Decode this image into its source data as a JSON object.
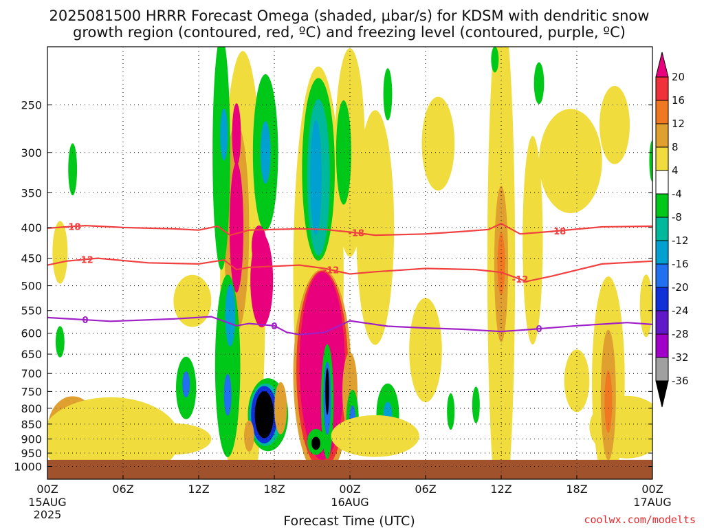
{
  "title_line1": "2025081500 HRRR Forecast Omega (shaded, μbar/s) for KDSM with dendritic snow",
  "title_line2": "growth region (contoured, red, ºC) and freezing level (contoured, purple, ºC)",
  "credit": "coolwx.com/modelts",
  "chart_data": {
    "type": "heatmap",
    "xlabel": "Forecast Time (UTC)",
    "ylabel": "",
    "x_range_hours": [
      0,
      48
    ],
    "y_axis": "pressure (mb), log scale, inverted",
    "y_range": [
      1050,
      200
    ],
    "x_ticks": [
      {
        "hour": 0,
        "label": "00Z",
        "sub1": "15AUG",
        "sub2": "2025"
      },
      {
        "hour": 6,
        "label": "06Z",
        "sub1": "",
        "sub2": ""
      },
      {
        "hour": 12,
        "label": "12Z",
        "sub1": "",
        "sub2": ""
      },
      {
        "hour": 18,
        "label": "18Z",
        "sub1": "",
        "sub2": ""
      },
      {
        "hour": 24,
        "label": "00Z",
        "sub1": "16AUG",
        "sub2": ""
      },
      {
        "hour": 30,
        "label": "06Z",
        "sub1": "",
        "sub2": ""
      },
      {
        "hour": 36,
        "label": "12Z",
        "sub1": "",
        "sub2": ""
      },
      {
        "hour": 42,
        "label": "18Z",
        "sub1": "",
        "sub2": ""
      },
      {
        "hour": 48,
        "label": "00Z",
        "sub1": "17AUG",
        "sub2": ""
      }
    ],
    "y_ticks": [
      250,
      300,
      350,
      400,
      450,
      500,
      550,
      600,
      650,
      700,
      750,
      800,
      850,
      900,
      950,
      1000
    ],
    "grid": true,
    "colorbar": {
      "levels": [
        20,
        16,
        12,
        8,
        4,
        -4,
        -8,
        -12,
        -16,
        -20,
        -24,
        -28,
        -32,
        -36
      ],
      "colors": [
        "#e8007c",
        "#f0303a",
        "#f07820",
        "#e0a030",
        "#f0dc3c",
        "#ffffff",
        "#00c818",
        "#00b89c",
        "#00a0d0",
        "#2070f0",
        "#1030d8",
        "#6018c8",
        "#a000c8",
        "#a0a0a0",
        "#000000"
      ]
    },
    "ground": {
      "pressure_from": 975,
      "color": "#a0522d"
    },
    "contours": [
      {
        "name": "-18",
        "color": "#f04040",
        "label_hours": [
          2,
          24.5,
          40.5
        ],
        "points": [
          [
            0,
            401
          ],
          [
            3,
            397
          ],
          [
            6,
            400
          ],
          [
            10,
            402
          ],
          [
            12,
            404
          ],
          [
            13.5,
            398
          ],
          [
            14.5,
            412
          ],
          [
            16,
            404
          ],
          [
            20,
            402
          ],
          [
            22,
            403
          ],
          [
            24,
            407
          ],
          [
            26,
            412
          ],
          [
            30,
            410
          ],
          [
            33,
            406
          ],
          [
            35,
            403
          ],
          [
            36,
            394
          ],
          [
            37.5,
            410
          ],
          [
            40,
            406
          ],
          [
            44,
            399
          ],
          [
            48,
            398
          ]
        ]
      },
      {
        "name": "-12",
        "color": "#f04040",
        "label_hours": [
          3,
          22.5,
          37.5
        ],
        "points": [
          [
            0,
            462
          ],
          [
            1.5,
            455
          ],
          [
            4,
            450
          ],
          [
            8,
            458
          ],
          [
            12,
            460
          ],
          [
            14,
            453
          ],
          [
            15,
            470
          ],
          [
            16,
            466
          ],
          [
            20,
            462
          ],
          [
            22,
            468
          ],
          [
            24,
            478
          ],
          [
            26,
            474
          ],
          [
            30,
            468
          ],
          [
            34,
            470
          ],
          [
            36,
            475
          ],
          [
            38,
            492
          ],
          [
            40,
            482
          ],
          [
            44,
            460
          ],
          [
            48,
            455
          ]
        ]
      },
      {
        "name": "0",
        "color": "#a020c8",
        "label_hours": [
          3,
          18,
          39
        ],
        "points": [
          [
            0,
            565
          ],
          [
            5,
            573
          ],
          [
            10,
            568
          ],
          [
            13,
            563
          ],
          [
            15,
            583
          ],
          [
            16,
            578
          ],
          [
            18,
            583
          ],
          [
            19,
            598
          ],
          [
            20,
            603
          ],
          [
            22,
            598
          ],
          [
            24,
            572
          ],
          [
            27,
            584
          ],
          [
            30,
            588
          ],
          [
            33,
            591
          ],
          [
            36,
            596
          ],
          [
            38,
            592
          ],
          [
            42,
            583
          ],
          [
            46,
            576
          ],
          [
            48,
            580
          ]
        ]
      }
    ],
    "shaded_regions": [
      {
        "level": 8,
        "cx": 2,
        "cy": 870,
        "rx": 2.0,
        "ry": 0.13
      },
      {
        "level": 4,
        "cx": 5,
        "cy": 900,
        "rx": 5.5,
        "ry": 0.16
      },
      {
        "level": 4,
        "cx": 1,
        "cy": 440,
        "rx": 0.6,
        "ry": 0.12
      },
      {
        "level": 4,
        "cx": 11.5,
        "cy": 530,
        "rx": 1.5,
        "ry": 0.1
      },
      {
        "level": 4,
        "cx": 10,
        "cy": 900,
        "rx": 3.0,
        "ry": 0.06
      },
      {
        "level": -8,
        "cx": 2,
        "cy": 320,
        "rx": 0.35,
        "ry": 0.1
      },
      {
        "level": -8,
        "cx": 1,
        "cy": 620,
        "rx": 0.35,
        "ry": 0.06
      },
      {
        "level": 4,
        "cx": 15.5,
        "cy": 500,
        "rx": 1.8,
        "ry": 0.9
      },
      {
        "level": 8,
        "cx": 15,
        "cy": 400,
        "rx": 1.0,
        "ry": 0.4
      },
      {
        "level": 20,
        "cx": 15,
        "cy": 400,
        "rx": 0.55,
        "ry": 0.25
      },
      {
        "level": 20,
        "cx": 15,
        "cy": 280,
        "rx": 0.35,
        "ry": 0.12
      },
      {
        "level": 20,
        "cx": 17,
        "cy": 490,
        "rx": 0.9,
        "ry": 0.18
      },
      {
        "level": 20,
        "cx": 16.8,
        "cy": 430,
        "rx": 0.6,
        "ry": 0.08
      },
      {
        "level": -8,
        "cx": 13.8,
        "cy": 300,
        "rx": 0.7,
        "ry": 0.45
      },
      {
        "level": -16,
        "cx": 14,
        "cy": 280,
        "rx": 0.3,
        "ry": 0.1
      },
      {
        "level": -8,
        "cx": 17.3,
        "cy": 300,
        "rx": 1.0,
        "ry": 0.3
      },
      {
        "level": -16,
        "cx": 17.3,
        "cy": 300,
        "rx": 0.4,
        "ry": 0.12
      },
      {
        "level": -8,
        "cx": 14.3,
        "cy": 680,
        "rx": 1.0,
        "ry": 0.35
      },
      {
        "level": -16,
        "cx": 14.5,
        "cy": 560,
        "rx": 0.4,
        "ry": 0.12
      },
      {
        "level": -20,
        "cx": 14.3,
        "cy": 760,
        "rx": 0.3,
        "ry": 0.08
      },
      {
        "level": -8,
        "cx": 11,
        "cy": 740,
        "rx": 0.8,
        "ry": 0.12
      },
      {
        "level": -20,
        "cx": 11,
        "cy": 730,
        "rx": 0.3,
        "ry": 0.05
      },
      {
        "level": -8,
        "cx": 17.5,
        "cy": 820,
        "rx": 1.6,
        "ry": 0.14
      },
      {
        "level": -12,
        "cx": 17.3,
        "cy": 820,
        "rx": 1.3,
        "ry": 0.12
      },
      {
        "level": -24,
        "cx": 17.2,
        "cy": 820,
        "rx": 1.05,
        "ry": 0.11
      },
      {
        "level": -36,
        "cx": 17.2,
        "cy": 820,
        "rx": 0.75,
        "ry": 0.09
      },
      {
        "level": 8,
        "cx": 16.0,
        "cy": 890,
        "rx": 0.4,
        "ry": 0.06
      },
      {
        "level": 8,
        "cx": 18.5,
        "cy": 800,
        "rx": 0.5,
        "ry": 0.1
      },
      {
        "level": 4,
        "cx": 21.5,
        "cy": 480,
        "rx": 2.0,
        "ry": 0.8
      },
      {
        "level": 4,
        "cx": 24,
        "cy": 300,
        "rx": 1.2,
        "ry": 0.4
      },
      {
        "level": -8,
        "cx": 21.5,
        "cy": 320,
        "rx": 1.3,
        "ry": 0.35
      },
      {
        "level": -12,
        "cx": 21.5,
        "cy": 330,
        "rx": 0.9,
        "ry": 0.3
      },
      {
        "level": -16,
        "cx": 21.3,
        "cy": 330,
        "rx": 0.45,
        "ry": 0.22
      },
      {
        "level": -8,
        "cx": 23.5,
        "cy": 300,
        "rx": 0.6,
        "ry": 0.2
      },
      {
        "level": 8,
        "cx": 21.8,
        "cy": 700,
        "rx": 2.3,
        "ry": 0.4
      },
      {
        "level": 16,
        "cx": 21.8,
        "cy": 690,
        "rx": 2.05,
        "ry": 0.38
      },
      {
        "level": 20,
        "cx": 21.8,
        "cy": 680,
        "rx": 1.8,
        "ry": 0.36
      },
      {
        "level": 8,
        "cx": 24,
        "cy": 750,
        "rx": 0.6,
        "ry": 0.15
      },
      {
        "level": -8,
        "cx": 22.2,
        "cy": 780,
        "rx": 0.5,
        "ry": 0.22
      },
      {
        "level": -20,
        "cx": 22.2,
        "cy": 770,
        "rx": 0.3,
        "ry": 0.14
      },
      {
        "level": -36,
        "cx": 22.2,
        "cy": 750,
        "rx": 0.15,
        "ry": 0.09
      },
      {
        "level": -8,
        "cx": 21.3,
        "cy": 910,
        "rx": 0.7,
        "ry": 0.05
      },
      {
        "level": -36,
        "cx": 21.3,
        "cy": 915,
        "rx": 0.35,
        "ry": 0.025
      },
      {
        "level": -8,
        "cx": 24.2,
        "cy": 840,
        "rx": 0.5,
        "ry": 0.12
      },
      {
        "level": -20,
        "cx": 24.2,
        "cy": 840,
        "rx": 0.25,
        "ry": 0.06
      },
      {
        "level": -8,
        "cx": 27,
        "cy": 820,
        "rx": 0.9,
        "ry": 0.12
      },
      {
        "level": -16,
        "cx": 27,
        "cy": 820,
        "rx": 0.35,
        "ry": 0.05
      },
      {
        "level": 4,
        "cx": 26,
        "cy": 890,
        "rx": 3.5,
        "ry": 0.08
      },
      {
        "level": 4,
        "cx": 26,
        "cy": 400,
        "rx": 1.5,
        "ry": 0.45
      },
      {
        "level": -8,
        "cx": 27,
        "cy": 240,
        "rx": 0.35,
        "ry": 0.1
      },
      {
        "level": -8,
        "cx": 30,
        "cy": 640,
        "rx": 0.7,
        "ry": 0.1
      },
      {
        "level": 4,
        "cx": 30,
        "cy": 640,
        "rx": 1.3,
        "ry": 0.2
      },
      {
        "level": 4,
        "cx": 31,
        "cy": 290,
        "rx": 1.3,
        "ry": 0.18
      },
      {
        "level": -8,
        "cx": 32,
        "cy": 810,
        "rx": 0.3,
        "ry": 0.07
      },
      {
        "level": 4,
        "cx": 36,
        "cy": 460,
        "rx": 1.1,
        "ry": 1.0
      },
      {
        "level": 8,
        "cx": 36,
        "cy": 460,
        "rx": 0.55,
        "ry": 0.3
      },
      {
        "level": 12,
        "cx": 36,
        "cy": 460,
        "rx": 0.3,
        "ry": 0.12
      },
      {
        "level": -8,
        "cx": 35.5,
        "cy": 210,
        "rx": 0.3,
        "ry": 0.05
      },
      {
        "level": -8,
        "cx": 34,
        "cy": 790,
        "rx": 0.3,
        "ry": 0.07
      },
      {
        "level": -8,
        "cx": 39,
        "cy": 230,
        "rx": 0.4,
        "ry": 0.08
      },
      {
        "level": 4,
        "cx": 38.5,
        "cy": 420,
        "rx": 0.8,
        "ry": 0.4
      },
      {
        "level": 4,
        "cx": 41.5,
        "cy": 310,
        "rx": 2.5,
        "ry": 0.2
      },
      {
        "level": 4,
        "cx": 45,
        "cy": 270,
        "rx": 1.2,
        "ry": 0.15
      },
      {
        "level": 4,
        "cx": 46,
        "cy": 860,
        "rx": 3.0,
        "ry": 0.12
      },
      {
        "level": 4,
        "cx": 44.5,
        "cy": 720,
        "rx": 1.3,
        "ry": 0.4
      },
      {
        "level": 8,
        "cx": 44.5,
        "cy": 760,
        "rx": 0.6,
        "ry": 0.25
      },
      {
        "level": 12,
        "cx": 44.5,
        "cy": 780,
        "rx": 0.3,
        "ry": 0.12
      },
      {
        "level": 4,
        "cx": 42,
        "cy": 720,
        "rx": 1.0,
        "ry": 0.12
      },
      {
        "level": 4,
        "cx": 47.5,
        "cy": 540,
        "rx": 0.5,
        "ry": 0.12
      },
      {
        "level": -8,
        "cx": 48,
        "cy": 310,
        "rx": 0.25,
        "ry": 0.08
      }
    ]
  }
}
